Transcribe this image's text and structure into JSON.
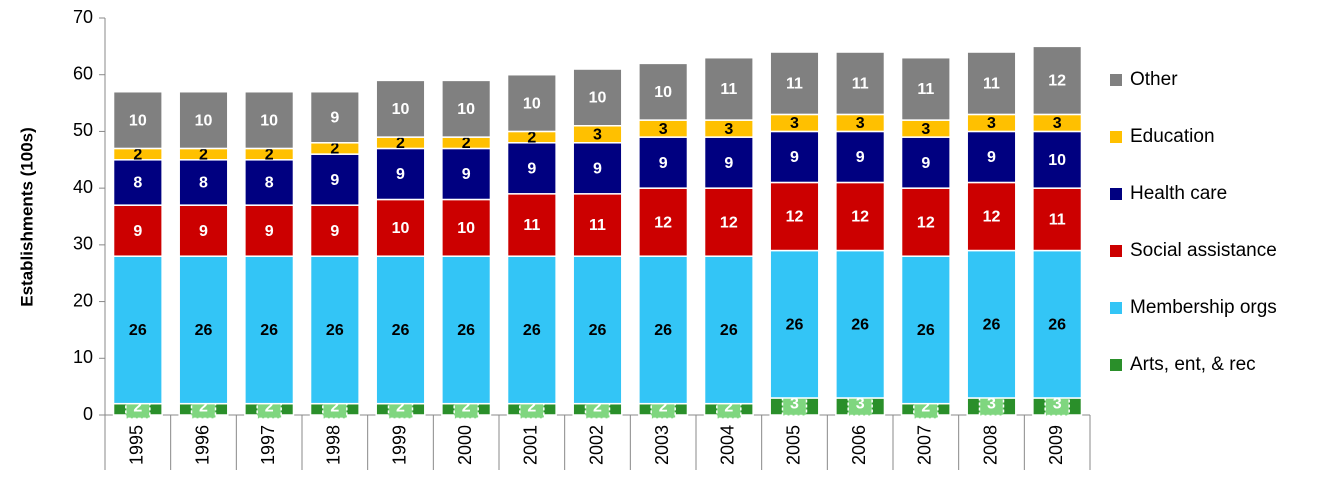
{
  "chart_data": {
    "type": "stacked_bar",
    "y_label": "Establishments (100s)",
    "categories": [
      "1995",
      "1996",
      "1997",
      "1998",
      "1999",
      "2000",
      "2001",
      "2002",
      "2003",
      "2004",
      "2005",
      "2006",
      "2007",
      "2008",
      "2009"
    ],
    "series": [
      {
        "name": "Arts, ent, & rec",
        "color": "#2a8f2a",
        "values": [
          2,
          2,
          2,
          2,
          2,
          2,
          2,
          2,
          2,
          2,
          3,
          3,
          2,
          3,
          3
        ]
      },
      {
        "name": "Membership orgs",
        "color": "#33c5f6",
        "values": [
          26,
          26,
          26,
          26,
          26,
          26,
          26,
          26,
          26,
          26,
          26,
          26,
          26,
          26,
          26
        ]
      },
      {
        "name": "Social assistance",
        "color": "#cc0000",
        "values": [
          9,
          9,
          9,
          9,
          10,
          10,
          11,
          11,
          12,
          12,
          12,
          12,
          12,
          12,
          11
        ]
      },
      {
        "name": "Health care",
        "color": "#000080",
        "values": [
          8,
          8,
          8,
          9,
          9,
          9,
          9,
          9,
          9,
          9,
          9,
          9,
          9,
          9,
          10
        ]
      },
      {
        "name": "Education",
        "color": "#ffc000",
        "values": [
          2,
          2,
          2,
          2,
          2,
          2,
          2,
          3,
          3,
          3,
          3,
          3,
          3,
          3,
          3
        ]
      },
      {
        "name": "Other",
        "color": "#808080",
        "values": [
          10,
          10,
          10,
          9,
          10,
          10,
          10,
          10,
          10,
          11,
          11,
          11,
          11,
          11,
          12
        ]
      }
    ],
    "ylim": [
      0,
      70
    ],
    "yticks": [
      0,
      10,
      20,
      30,
      40,
      50,
      60,
      70
    ],
    "legend": "right"
  }
}
